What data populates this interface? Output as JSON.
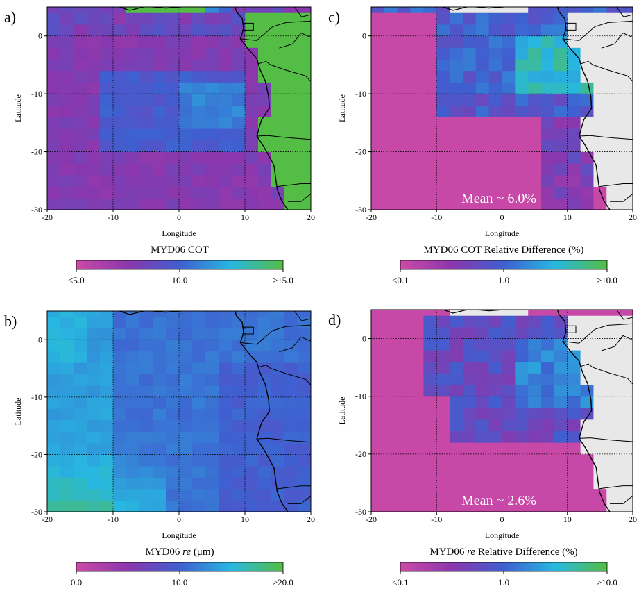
{
  "figure": {
    "panels": [
      {
        "id": "a",
        "label": "a)",
        "xlabel": "Longitude",
        "ylabel": "Latitude",
        "xticks": [
          "-20",
          "-10",
          "0",
          "10",
          "20"
        ],
        "yticks": [
          "0",
          "-10",
          "-20",
          "-30"
        ],
        "colorbar_title": "MYD06 COT",
        "colorbar_title_italic": "",
        "colorbar_title_suffix": "",
        "colorbar_ticks": [
          "≤5.0",
          "10.0",
          "≥15.0"
        ],
        "annotation": "",
        "colormap": [
          "#cc4aa6",
          "#8a37ad",
          "#3f5fd0",
          "#27b8e0",
          "#54bd45"
        ],
        "land_fill": "#54bd45"
      },
      {
        "id": "b",
        "label": "b)",
        "xlabel": "Longitude",
        "ylabel": "Latitude",
        "xticks": [
          "-20",
          "-10",
          "0",
          "10",
          "20"
        ],
        "yticks": [
          "0",
          "-10",
          "-20",
          "-30"
        ],
        "colorbar_title": "MYD06 ",
        "colorbar_title_italic": "re",
        "colorbar_title_suffix": " (μm)",
        "colorbar_ticks": [
          "0.0",
          "10.0",
          "≥20.0"
        ],
        "annotation": "",
        "colormap": [
          "#cc4aa6",
          "#8a37ad",
          "#3f5fd0",
          "#27b8e0",
          "#54bd45"
        ],
        "land_fill": ""
      },
      {
        "id": "c",
        "label": "c)",
        "xlabel": "Longitude",
        "ylabel": "Latitude",
        "xticks": [
          "-20",
          "-10",
          "0",
          "10",
          "20"
        ],
        "yticks": [
          "0",
          "-10",
          "-20",
          "-30"
        ],
        "colorbar_title": "MYD06 COT Relative Difference (%)",
        "colorbar_title_italic": "",
        "colorbar_title_suffix": "",
        "colorbar_ticks": [
          "≤0.1",
          "1.0",
          "≥10.0"
        ],
        "annotation": "Mean ~ 6.0%",
        "colormap": [
          "#cc4aa6",
          "#8a37ad",
          "#3f5fd0",
          "#27b8e0",
          "#54bd45"
        ],
        "land_fill": "#e8e8e8"
      },
      {
        "id": "d",
        "label": "d)",
        "xlabel": "Longitude",
        "ylabel": "Latitude",
        "xticks": [
          "-20",
          "-10",
          "0",
          "10",
          "20"
        ],
        "yticks": [
          "0",
          "-10",
          "-20",
          "-30"
        ],
        "colorbar_title": "MYD06 ",
        "colorbar_title_italic": "re",
        "colorbar_title_suffix": " Relative Difference (%)",
        "colorbar_ticks": [
          "≤0.1",
          "1.0",
          "≥10.0"
        ],
        "annotation": "Mean ~ 2.6%",
        "colormap": [
          "#cc4aa6",
          "#8a37ad",
          "#3f5fd0",
          "#27b8e0",
          "#54bd45"
        ],
        "land_fill": "#e8e8e8"
      }
    ]
  },
  "chart_data": [
    {
      "type": "heatmap",
      "panel": "a",
      "xlim": [
        -20,
        20
      ],
      "ylim": [
        -30,
        5
      ],
      "grid": true,
      "grid_style": "dotted",
      "value_label": "MYD06 COT",
      "value_range": [
        5.0,
        15.0
      ],
      "cell_size_deg": 2,
      "land_mask": "Africa (filled)",
      "annotation": ""
    },
    {
      "type": "heatmap",
      "panel": "b",
      "xlim": [
        -20,
        20
      ],
      "ylim": [
        -30,
        5
      ],
      "grid": true,
      "grid_style": "dotted",
      "value_label": "MYD06 re (μm)",
      "value_range": [
        0.0,
        20.0
      ],
      "cell_size_deg": 2,
      "land_mask": "none",
      "annotation": ""
    },
    {
      "type": "heatmap",
      "panel": "c",
      "xlim": [
        -20,
        20
      ],
      "ylim": [
        -30,
        5
      ],
      "grid": true,
      "grid_style": "dotted",
      "value_label": "MYD06 COT Relative Difference (%)",
      "value_range": [
        0.1,
        10.0
      ],
      "value_scale": "log",
      "cell_size_deg": 2,
      "land_mask": "Africa (gray)",
      "annotation": "Mean ~ 6.0%"
    },
    {
      "type": "heatmap",
      "panel": "d",
      "xlim": [
        -20,
        20
      ],
      "ylim": [
        -30,
        5
      ],
      "grid": true,
      "grid_style": "dotted",
      "value_label": "MYD06 re Relative Difference (%)",
      "value_range": [
        0.1,
        10.0
      ],
      "value_scale": "log",
      "cell_size_deg": 2,
      "land_mask": "Africa (gray)",
      "annotation": "Mean ~ 2.6%"
    }
  ]
}
